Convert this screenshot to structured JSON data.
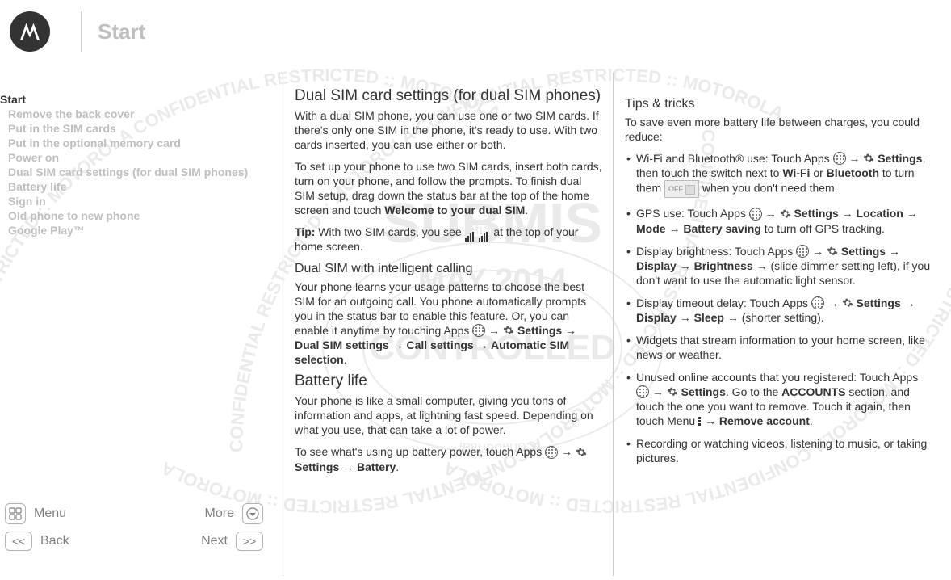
{
  "title": "Start",
  "colors": {
    "text": "#333333",
    "muted": "#bfbfbf",
    "nav_gray": "#808080",
    "border": "#cccccc",
    "background": "#ffffff"
  },
  "typography": {
    "title_fontsize": 26,
    "h2_fontsize": 19,
    "h3_fontsize": 16,
    "body_fontsize": 14,
    "sidebar_fontsize": 14,
    "nav_fontsize": 16
  },
  "watermark": {
    "curve_text": "CONFIDENTIAL RESTRICTED :: MOTOROLA CONFIDENTIAL RESTRICTED :: MOTOROLA",
    "center_line1": "SUBMIS",
    "center_line2": "MAY 2014",
    "stamp_outer_top": "Confidential",
    "stamp_outer_bottom": "Confidential",
    "stamp_inner": "CONTROLLED",
    "color": "#e8e8e8",
    "font_family": "Arial"
  },
  "sidebar": {
    "items": [
      {
        "label": "Start",
        "active": true,
        "indent": false
      },
      {
        "label": "Remove the back cover",
        "active": false,
        "indent": true
      },
      {
        "label": "Put in the SIM cards",
        "active": false,
        "indent": true
      },
      {
        "label": "Put in the optional memory card",
        "active": false,
        "indent": true
      },
      {
        "label": "Power on",
        "active": false,
        "indent": true
      },
      {
        "label": "Dual SIM card settings (for dual SIM phones)",
        "active": false,
        "indent": true
      },
      {
        "label": "Battery life",
        "active": false,
        "indent": true
      },
      {
        "label": "Sign in",
        "active": false,
        "indent": true
      },
      {
        "label": "Old phone to new phone",
        "active": false,
        "indent": true
      },
      {
        "label": "Google Play™",
        "active": false,
        "indent": true
      }
    ]
  },
  "nav": {
    "menu": "Menu",
    "more": "More",
    "back": "Back",
    "next": "Next"
  },
  "col1": {
    "h2a": "Dual SIM card settings (for dual SIM phones)",
    "p1": "With a dual SIM phone, you can use one or two SIM cards. If there's only one SIM in the phone, it's ready to use. With two cards inserted, you can use either or both.",
    "p2a": "To set up your phone to use two SIM cards, insert both cards, turn on your phone, and follow the prompts. To finish dual SIM setup, drag down the status bar at the top of the home screen and touch ",
    "p2b": "Welcome to your dual SIM",
    "p2c": ".",
    "tip_label": "Tip:",
    "tip_a": " With two SIM cards, you see ",
    "tip_b": " at the top of your home screen.",
    "h3a": "Dual SIM with intelligent calling",
    "p3a": "Your phone learns your usage patterns to choose the best SIM for an outgoing call. You phone automatically prompts you in the status bar to enable this feature. Or, you can enable it anytime by touching Apps ",
    "p3_settings": "Settings",
    "p3_dual": "Dual SIM settings",
    "p3_call": "Call settings",
    "p3_auto": "Automatic SIM selection",
    "h2b": "Battery life",
    "p4": "Your phone is like a small computer, giving you tons of information and apps, at lightning fast speed. Depending on what you use, that can take a lot of power.",
    "p5a": "To see what's using up battery power, touch Apps ",
    "p5_settings": "Settings",
    "p5_battery": "Battery"
  },
  "col2": {
    "h3": "Tips & tricks",
    "intro": "To save even more battery life between charges, you could reduce:",
    "li1a": "Wi-Fi and Bluetooth® use: Touch Apps ",
    "li1_settings": "Settings",
    "li1b": ", then touch the switch next to ",
    "li1_wifi": "Wi-Fi",
    "li1c": " or ",
    "li1_bt": "Bluetooth",
    "li1d": " to turn them ",
    "li1_off": "OFF",
    "li1e": " when you don't need them.",
    "li2a": "GPS use: Touch Apps ",
    "li2_settings": "Settings",
    "li2_loc": "Location",
    "li2_mode": "Mode",
    "li2_bs": "Battery saving",
    "li2b": " to turn off GPS tracking.",
    "li3a": "Display brightness: Touch Apps ",
    "li3_settings": "Settings",
    "li3_disp": "Display",
    "li3_bright": "Brightness",
    "li3b": " (slide dimmer setting left), if you don't want to use the automatic light sensor.",
    "li4a": "Display timeout delay: Touch Apps ",
    "li4_settings": "Settings",
    "li4_disp": "Display",
    "li4_sleep": "Sleep",
    "li4b": "(shorter setting).",
    "li5": "Widgets that stream information to your home screen, like news or weather.",
    "li6a": "Unused online accounts that you registered: Touch Apps ",
    "li6_settings": "Settings",
    "li6b": ". Go to the ",
    "li6_acc": "ACCOUNTS",
    "li6c": " section, and touch the one you want to remove. Touch it again, then touch Menu ",
    "li6_remove": "Remove account",
    "li6d": ".",
    "li7": "Recording or watching videos, listening to music, or taking pictures."
  }
}
